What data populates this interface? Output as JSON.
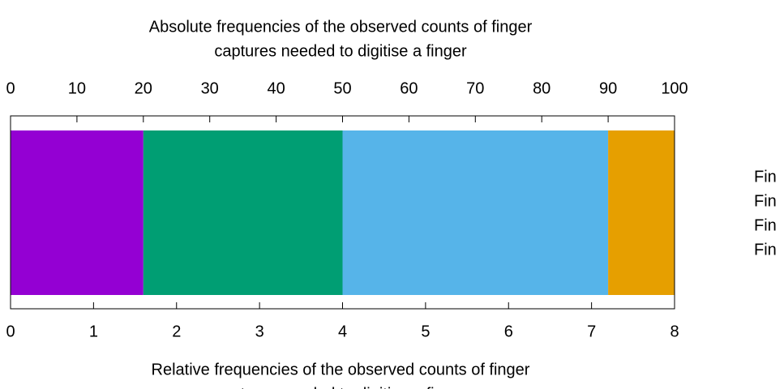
{
  "chart_data": {
    "type": "bar",
    "orientation": "horizontal",
    "stacked": true,
    "title": [
      "Absolute frequencies of the observed counts of finger",
      "captures needed to digitise a finger"
    ],
    "xlabel": [
      "Relative frequencies of the observed counts of finger",
      "captures needed to digitise a finger"
    ],
    "series": [
      {
        "name": "Fin",
        "color": "#9400d3",
        "values": [
          1.6
        ]
      },
      {
        "name": "Fin",
        "color": "#009e73",
        "values": [
          2.4
        ]
      },
      {
        "name": "Fin",
        "color": "#56b4e9",
        "values": [
          3.2
        ]
      },
      {
        "name": "Fin",
        "color": "#e69f00",
        "values": [
          0.8
        ]
      }
    ],
    "xlim": [
      0,
      8
    ],
    "xticks": [
      0,
      1,
      2,
      3,
      4,
      5,
      6,
      7,
      8
    ],
    "x2lim": [
      0,
      100
    ],
    "x2ticks": [
      0,
      10,
      20,
      30,
      40,
      50,
      60,
      70,
      80,
      90,
      100
    ],
    "legend": "right"
  }
}
